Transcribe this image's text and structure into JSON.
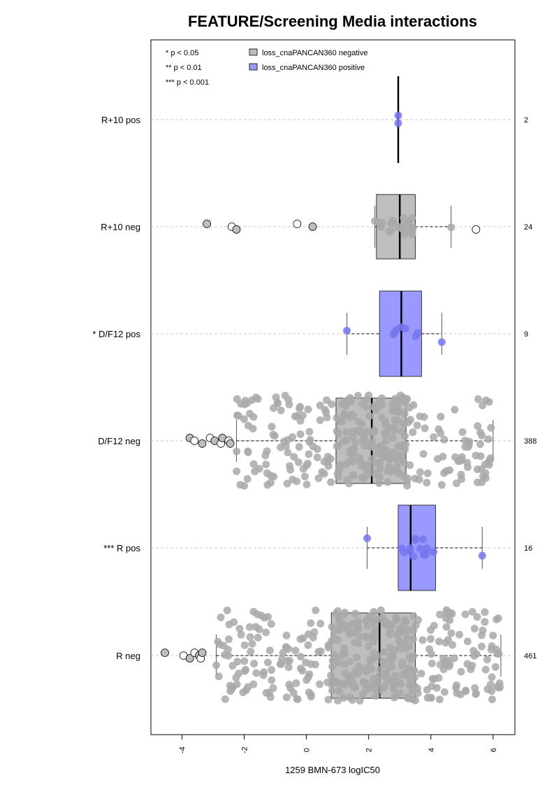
{
  "chart_data": {
    "type": "boxplot",
    "orientation": "horizontal",
    "title": "FEATURE/Screening Media interactions",
    "xlabel": "1259 BMN-673 logIC50",
    "xlim": [
      -5,
      6.7
    ],
    "x_ticks": [
      -4,
      -2,
      0,
      2,
      4,
      6
    ],
    "x_tick_labels": [
      "-4",
      "-2",
      "0",
      "2",
      "4",
      "6"
    ],
    "grid": "dashed horizontal lines at each group",
    "significance_legend": [
      "* p < 0.05",
      "** p < 0.01",
      "*** p < 0.001"
    ],
    "legend": [
      {
        "label": "loss_cnaPANCAN360 negative",
        "color": "#bebebe"
      },
      {
        "label": "loss_cnaPANCAN360 positive",
        "color": "#9999ff"
      }
    ],
    "groups": [
      {
        "label": "R+10 pos",
        "n": "2",
        "status": "positive",
        "min": 2.95,
        "q1": 2.95,
        "median": 2.95,
        "q3": 2.95,
        "max": 2.95,
        "outliers": []
      },
      {
        "label": "R+10 neg",
        "n": "24",
        "status": "negative",
        "min": 2.2,
        "q1": 2.25,
        "median": 3.0,
        "q3": 3.5,
        "max": 4.65,
        "outliers": [
          -3.2,
          -2.4,
          -2.25,
          -0.3,
          0.2,
          5.45
        ]
      },
      {
        "label": "* D/F12 pos",
        "n": "9",
        "status": "positive",
        "min": 1.3,
        "q1": 2.35,
        "median": 3.05,
        "q3": 3.7,
        "max": 4.35,
        "outliers": []
      },
      {
        "label": "D/F12 neg",
        "n": "388",
        "status": "negative",
        "min": -2.25,
        "q1": 0.95,
        "median": 2.1,
        "q3": 3.2,
        "max": 6.0,
        "outliers": [
          -3.75,
          -3.6,
          -3.35,
          -3.1,
          -2.95,
          -2.75,
          -2.7,
          -2.5,
          -2.45
        ]
      },
      {
        "label": "*** R pos",
        "n": "16",
        "status": "positive",
        "min": 1.95,
        "q1": 2.95,
        "median": 3.35,
        "q3": 4.15,
        "max": 5.65,
        "outliers": []
      },
      {
        "label": "R neg",
        "n": "461",
        "status": "negative",
        "min": -2.9,
        "q1": 0.8,
        "median": 2.35,
        "q3": 3.5,
        "max": 6.25,
        "outliers": [
          -4.55,
          -3.95,
          -3.75,
          -3.6,
          -3.45,
          -3.4,
          -3.35
        ]
      }
    ]
  }
}
